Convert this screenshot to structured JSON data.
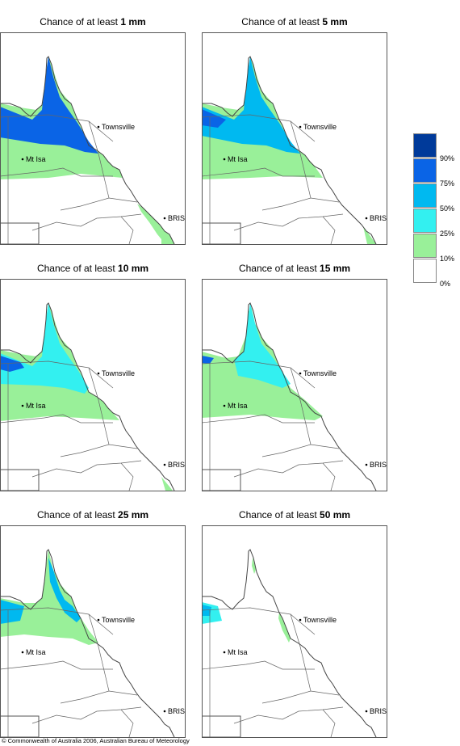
{
  "panels": [
    {
      "title_prefix": "Chance of at least ",
      "amount": "1 mm"
    },
    {
      "title_prefix": "Chance of at least ",
      "amount": "5 mm"
    },
    {
      "title_prefix": "Chance of at least ",
      "amount": "10 mm"
    },
    {
      "title_prefix": "Chance of at least ",
      "amount": "15 mm"
    },
    {
      "title_prefix": "Chance of at least ",
      "amount": "25 mm"
    },
    {
      "title_prefix": "Chance of at least ",
      "amount": "50 mm"
    }
  ],
  "places": [
    "Townsville",
    "Mt Isa",
    "BRIS"
  ],
  "legend": {
    "bins": [
      {
        "label": "90%",
        "color": "#003a9a"
      },
      {
        "label": "75%",
        "color": "#0a64e6"
      },
      {
        "label": "50%",
        "color": "#00b9f0"
      },
      {
        "label": "25%",
        "color": "#33f0f0"
      },
      {
        "label": "10%",
        "color": "#99f099"
      },
      {
        "label": "0%",
        "color": "#ffffff"
      }
    ]
  },
  "copyright": "© Commonwealth of Australia 2006, Australian Bureau of Meteorology"
}
